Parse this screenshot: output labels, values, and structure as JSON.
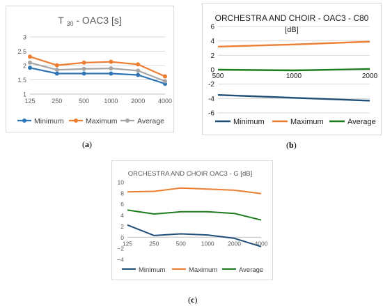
{
  "captions": {
    "a": "a",
    "b": "b",
    "c": "c"
  },
  "chart_data": [
    {
      "id": "a",
      "type": "line",
      "title": "T30 - OAC3 [s]",
      "categories": [
        "125",
        "250",
        "500",
        "1000",
        "2000",
        "4000"
      ],
      "ylim": [
        1,
        3
      ],
      "yticks": [
        1,
        1.5,
        2,
        2.5,
        3
      ],
      "ytick_labels": [
        "1",
        "1.5",
        "2",
        "2.5",
        "3"
      ],
      "grid": true,
      "legend": "bottom",
      "markers": true,
      "series": [
        {
          "name": "Minimum",
          "color": "#2e75b6",
          "values": [
            1.92,
            1.72,
            1.72,
            1.72,
            1.67,
            1.36
          ]
        },
        {
          "name": "Maximum",
          "color": "#ed7d31",
          "values": [
            2.31,
            2.01,
            2.1,
            2.13,
            2.04,
            1.62
          ]
        },
        {
          "name": "Average",
          "color": "#a5a5a5",
          "values": [
            2.1,
            1.85,
            1.88,
            1.9,
            1.82,
            1.45
          ]
        }
      ]
    },
    {
      "id": "b",
      "type": "line",
      "title": "ORCHESTRA AND CHOIR - OAC3 - C80",
      "subtitle": "[dB]",
      "categories": [
        "500",
        "1000",
        "2000"
      ],
      "ylim": [
        -6,
        6
      ],
      "yticks": [
        -6,
        -4,
        -2,
        0,
        2,
        4,
        6
      ],
      "ytick_labels": [
        "-6",
        "-4",
        "-2",
        "0",
        "2",
        "4",
        "6"
      ],
      "grid": true,
      "legend": "bottom",
      "markers": false,
      "series": [
        {
          "name": "Minimum",
          "color": "#1f4e79",
          "values": [
            -3.5,
            -3.9,
            -4.3
          ]
        },
        {
          "name": "Maximum",
          "color": "#ed7d31",
          "values": [
            3.2,
            3.5,
            3.9
          ]
        },
        {
          "name": "Average",
          "color": "#1e7b1e",
          "values": [
            0.0,
            -0.1,
            0.1
          ]
        }
      ]
    },
    {
      "id": "c",
      "type": "line",
      "title": "ORCHESTRA AND CHOIR OAC3 - G [dB]",
      "categories": [
        "125",
        "250",
        "500",
        "1000",
        "2000",
        "4000"
      ],
      "ylim": [
        -4,
        10
      ],
      "yticks": [
        -4,
        -2,
        0,
        2,
        4,
        6,
        8,
        10
      ],
      "ytick_labels": [
        "−4",
        "−2",
        "0",
        "2",
        "4",
        "6",
        "8",
        "10"
      ],
      "grid": false,
      "legend": "bottom",
      "markers": false,
      "series": [
        {
          "name": "Minimum",
          "color": "#1f4e79",
          "values": [
            2.2,
            0.3,
            0.6,
            0.4,
            -0.2,
            -1.7
          ]
        },
        {
          "name": "Maximum",
          "color": "#ed7d31",
          "values": [
            8.2,
            8.3,
            8.9,
            8.7,
            8.5,
            7.9
          ]
        },
        {
          "name": "Average",
          "color": "#1e7b1e",
          "values": [
            4.9,
            4.2,
            4.6,
            4.6,
            4.3,
            3.1
          ]
        }
      ]
    }
  ]
}
